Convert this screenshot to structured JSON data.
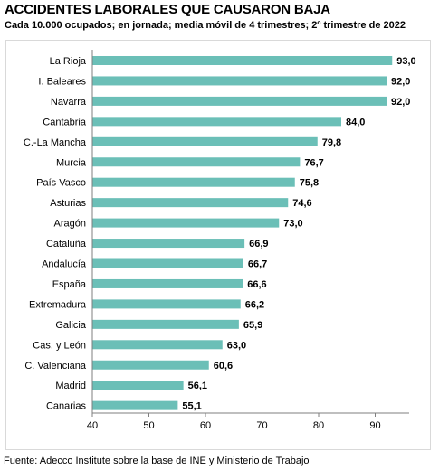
{
  "header": {
    "title": "ACCIDENTES LABORALES QUE CAUSARON BAJA",
    "subtitle": "Cada 10.000 ocupados; en jornada; media móvil de 4 trimestres; 2º trimestre de 2022"
  },
  "footer": {
    "source": "Fuente: Adecco Institute sobre la base de INE y Ministerio de Trabajo"
  },
  "colors": {
    "bar": "#6bbfb7",
    "axis": "#7f7f7f"
  },
  "chart_data": {
    "type": "bar",
    "orientation": "horizontal",
    "title": "ACCIDENTES LABORALES QUE CAUSARON BAJA",
    "subtitle": "Cada 10.000 ocupados; en jornada; media móvil de 4 trimestres; 2º trimestre de 2022",
    "categories": [
      "La Rioja",
      "I. Baleares",
      "Navarra",
      "Cantabria",
      "C.-La Mancha",
      "Murcia",
      "País Vasco",
      "Asturias",
      "Aragón",
      "Cataluña",
      "Andalucía",
      "España",
      "Extremadura",
      "Galicia",
      "Cas. y León",
      "C. Valenciana",
      "Madrid",
      "Canarias"
    ],
    "values": [
      93.0,
      92.0,
      92.0,
      84.0,
      79.8,
      76.7,
      75.8,
      74.6,
      73.0,
      66.9,
      66.7,
      66.6,
      66.2,
      65.9,
      63.0,
      60.6,
      56.1,
      55.1
    ],
    "value_labels": [
      "93,0",
      "92,0",
      "92,0",
      "84,0",
      "79,8",
      "76,7",
      "75,8",
      "74,6",
      "73,0",
      "66,9",
      "66,7",
      "66,6",
      "66,2",
      "65,9",
      "63,0",
      "60,6",
      "56,1",
      "55,1"
    ],
    "xlim": [
      40,
      96
    ],
    "xticks": [
      "40",
      "50",
      "60",
      "70",
      "80",
      "90"
    ],
    "grid": false,
    "legend": "none"
  }
}
